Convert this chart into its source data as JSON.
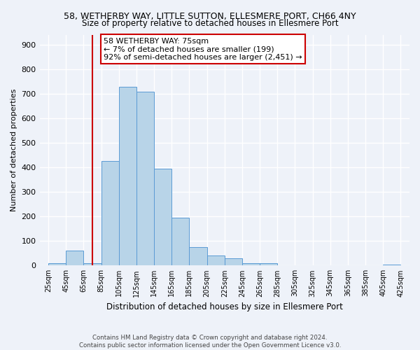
{
  "title": "58, WETHERBY WAY, LITTLE SUTTON, ELLESMERE PORT, CH66 4NY",
  "subtitle": "Size of property relative to detached houses in Ellesmere Port",
  "xlabel": "Distribution of detached houses by size in Ellesmere Port",
  "ylabel": "Number of detached properties",
  "bins_left": [
    25,
    45,
    65,
    85,
    105,
    125,
    145,
    165,
    185,
    205,
    225,
    245,
    265,
    285,
    305,
    325,
    345,
    365,
    385,
    405
  ],
  "bin_values": [
    10,
    60,
    10,
    425,
    728,
    710,
    395,
    195,
    75,
    42,
    30,
    10,
    10,
    0,
    0,
    0,
    0,
    0,
    0,
    5
  ],
  "bar_color": "#b8d4e8",
  "bar_edge_color": "#5b9bd5",
  "property_size": 75,
  "vline_color": "#cc0000",
  "annotation_text": "58 WETHERBY WAY: 75sqm\n← 7% of detached houses are smaller (199)\n92% of semi-detached houses are larger (2,451) →",
  "annotation_box_color": "#ffffff",
  "annotation_box_edge": "#cc0000",
  "tick_labels": [
    "25sqm",
    "45sqm",
    "65sqm",
    "85sqm",
    "105sqm",
    "125sqm",
    "145sqm",
    "165sqm",
    "185sqm",
    "205sqm",
    "225sqm",
    "245sqm",
    "265sqm",
    "285sqm",
    "305sqm",
    "325sqm",
    "345sqm",
    "365sqm",
    "385sqm",
    "405sqm",
    "425sqm"
  ],
  "tick_positions": [
    25,
    45,
    65,
    85,
    105,
    125,
    145,
    165,
    185,
    205,
    225,
    245,
    265,
    285,
    305,
    325,
    345,
    365,
    385,
    405,
    425
  ],
  "xlim": [
    15,
    435
  ],
  "ylim": [
    0,
    940
  ],
  "yticks": [
    0,
    100,
    200,
    300,
    400,
    500,
    600,
    700,
    800,
    900
  ],
  "background_color": "#eef2f9",
  "grid_color": "#ffffff",
  "footer_line1": "Contains HM Land Registry data © Crown copyright and database right 2024.",
  "footer_line2": "Contains public sector information licensed under the Open Government Licence v3.0."
}
